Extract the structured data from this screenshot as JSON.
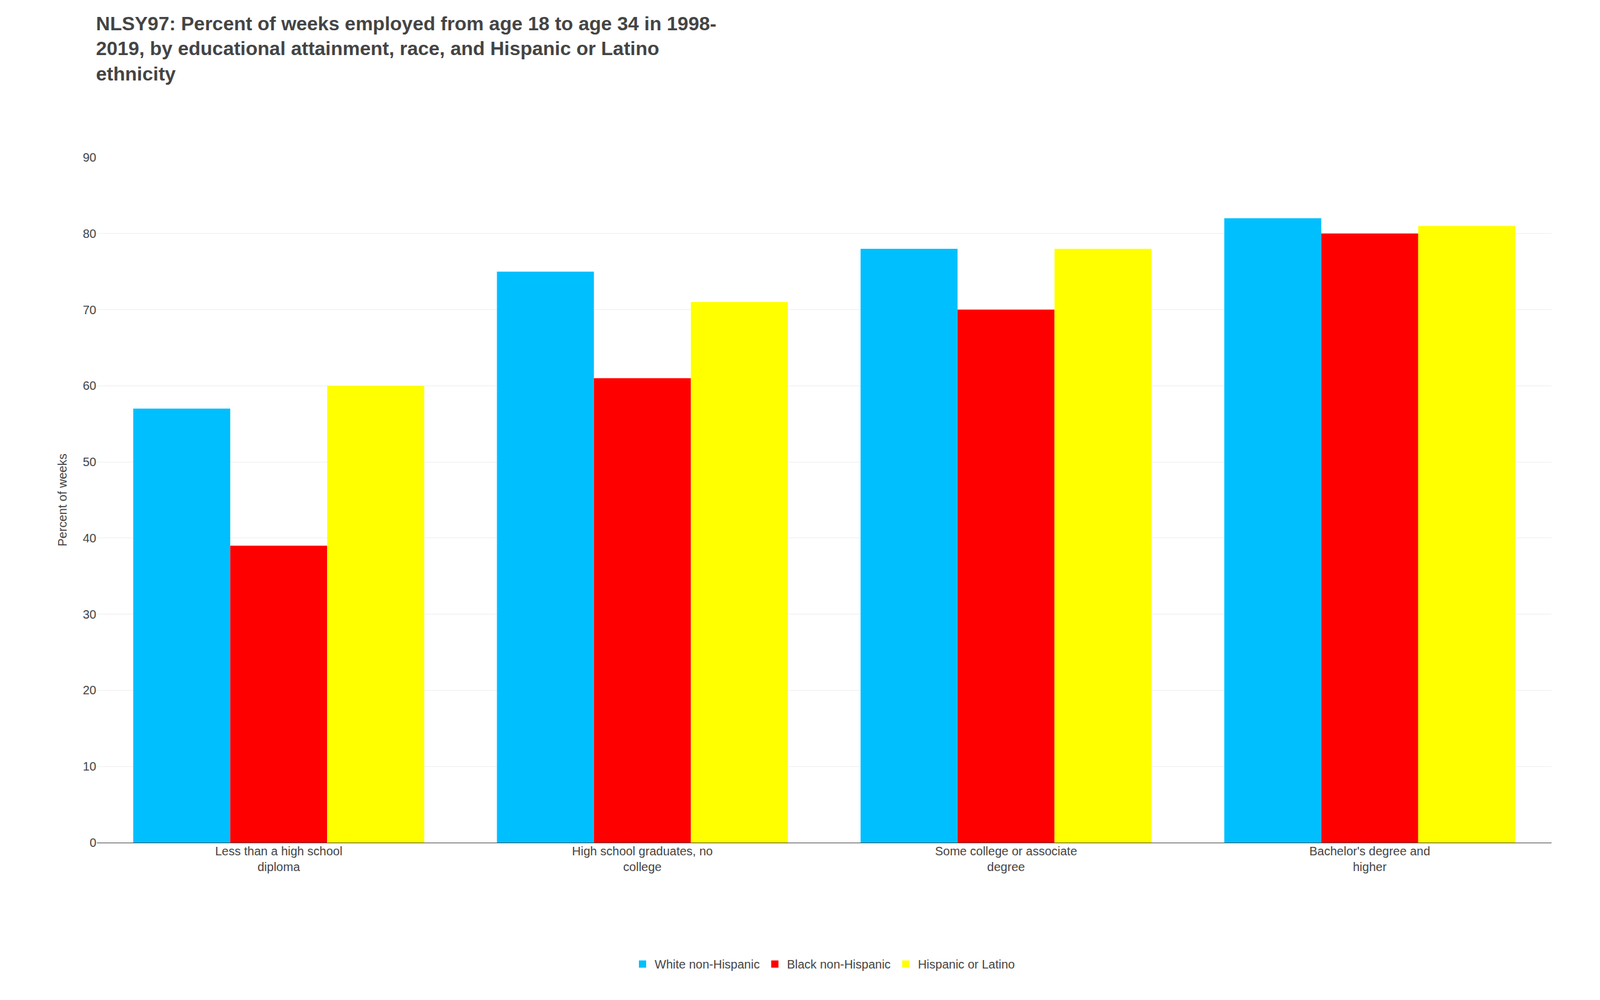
{
  "chart_data": {
    "type": "bar",
    "title": "NLSY97: Percent of weeks employed from age 18 to age 34 in 1998-\n2019, by educational attainment, race, and Hispanic or Latino\nethnicity",
    "ylabel": "Percent of weeks",
    "categories": [
      "Less than a high school\ndiploma",
      "High school graduates, no\ncollege",
      "Some college or associate\ndegree",
      "Bachelor's degree and\nhigher"
    ],
    "series": [
      {
        "name": "White non-Hispanic",
        "color": "#00BFFF",
        "values": [
          57,
          75,
          78,
          82
        ]
      },
      {
        "name": "Black non-Hispanic",
        "color": "#FF0000",
        "values": [
          39,
          61,
          70,
          80
        ]
      },
      {
        "name": "Hispanic or Latino",
        "color": "#FFFF00",
        "values": [
          60,
          71,
          78,
          81
        ]
      }
    ],
    "ylim": [
      0,
      90
    ],
    "yticks": [
      0,
      10,
      20,
      30,
      40,
      50,
      60,
      70,
      80,
      90
    ],
    "grid": true,
    "legend": "bottom"
  }
}
